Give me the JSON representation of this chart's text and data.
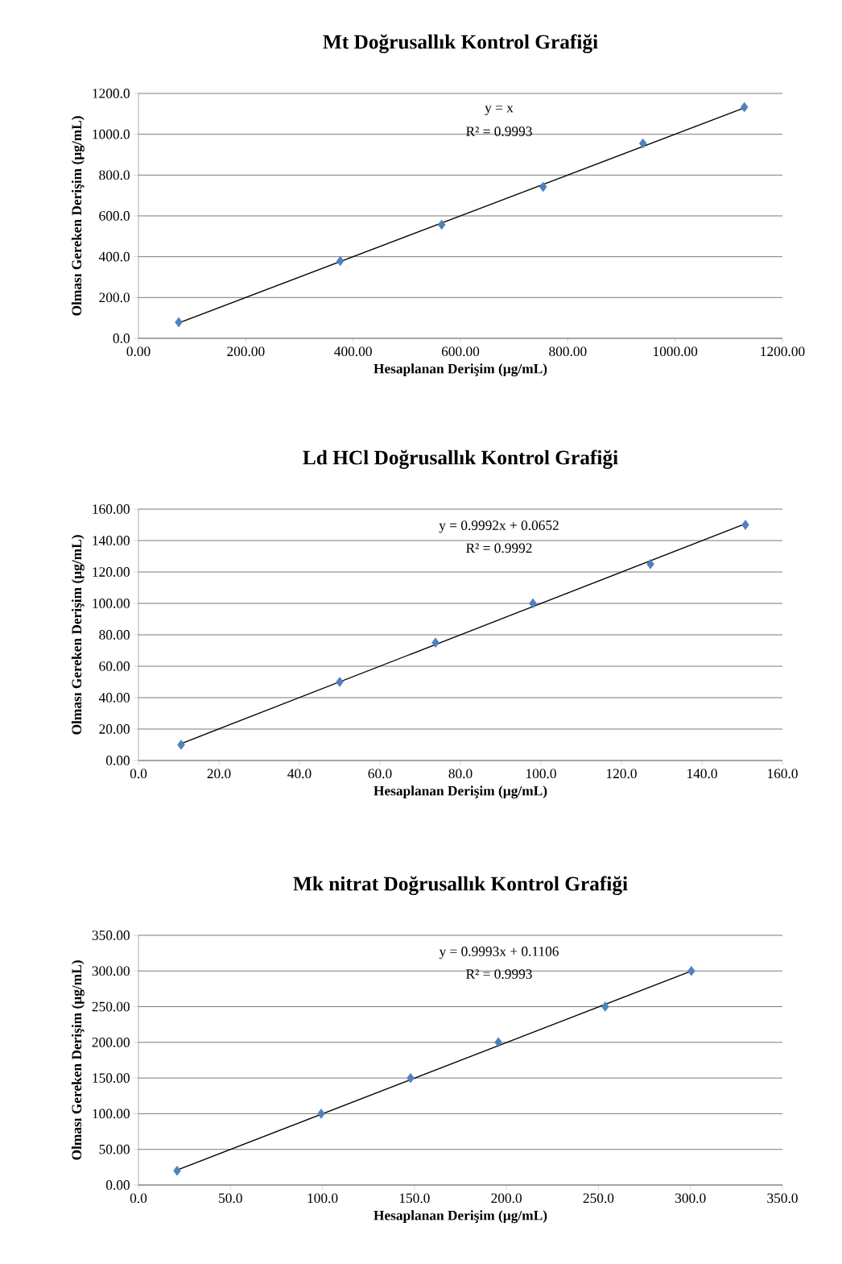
{
  "chart_data": [
    {
      "type": "scatter",
      "title": "Mt Doğrusallık Kontrol Grafiği",
      "xlabel": "Hesaplanan Derişim (µg/mL)",
      "ylabel": "Olması Gereken Derişim (µg/mL)",
      "grid": "y",
      "series": [
        {
          "color": "#4f81bd",
          "marker": "diamond",
          "x": [
            75,
            376,
            565,
            754,
            940,
            1129
          ],
          "values": [
            79,
            379,
            557,
            742,
            955,
            1133
          ]
        },
        {
          "type": "line",
          "marker": "none",
          "color": "#000000",
          "x": [
            75,
            1129
          ],
          "values": [
            75,
            1129
          ]
        }
      ],
      "xlim": [
        0,
        1200
      ],
      "ylim": [
        0,
        1200
      ],
      "xticks": [
        {
          "value": 0,
          "label": "0.00"
        },
        {
          "value": 200,
          "label": "200.00"
        },
        {
          "value": 400,
          "label": "400.00"
        },
        {
          "value": 600,
          "label": "600.00"
        },
        {
          "value": 800,
          "label": "800.00"
        },
        {
          "value": 1000,
          "label": "1000.00"
        },
        {
          "value": 1200,
          "label": "1200.00"
        }
      ],
      "yticks": [
        {
          "value": 0,
          "label": "0.0"
        },
        {
          "value": 200,
          "label": "200.0"
        },
        {
          "value": 400,
          "label": "400.0"
        },
        {
          "value": 600,
          "label": "600.0"
        },
        {
          "value": 800,
          "label": "800.0"
        },
        {
          "value": 1000,
          "label": "1000.0"
        },
        {
          "value": 1200,
          "label": "1200.0"
        }
      ],
      "annotations": [
        "y = x",
        "R² = 0.9993"
      ]
    },
    {
      "type": "scatter",
      "title": "Ld HCl Doğrusallık Kontrol Grafiği",
      "xlabel": "Hesaplanan Derişim (µg/mL)",
      "ylabel": "Olması Gereken Derişim (µg/mL)",
      "grid": "y",
      "series": [
        {
          "color": "#4f81bd",
          "marker": "diamond",
          "x": [
            10.6,
            50,
            73.8,
            98,
            127.2,
            150.8
          ],
          "values": [
            10,
            50,
            75,
            100,
            125,
            150
          ]
        },
        {
          "type": "line",
          "marker": "none",
          "color": "#000000",
          "x": [
            10.6,
            150.8
          ],
          "values": [
            10.7,
            150.7
          ]
        }
      ],
      "xlim": [
        0,
        160
      ],
      "ylim": [
        0,
        160
      ],
      "xticks": [
        {
          "value": 0,
          "label": "0.0"
        },
        {
          "value": 20,
          "label": "20.0"
        },
        {
          "value": 40,
          "label": "40.0"
        },
        {
          "value": 60,
          "label": "60.0"
        },
        {
          "value": 80,
          "label": "80.0"
        },
        {
          "value": 100,
          "label": "100.0"
        },
        {
          "value": 120,
          "label": "120.0"
        },
        {
          "value": 140,
          "label": "140.0"
        },
        {
          "value": 160,
          "label": "160.0"
        }
      ],
      "yticks": [
        {
          "value": 0,
          "label": "0.00"
        },
        {
          "value": 20,
          "label": "20.00"
        },
        {
          "value": 40,
          "label": "40.00"
        },
        {
          "value": 60,
          "label": "60.00"
        },
        {
          "value": 80,
          "label": "80.00"
        },
        {
          "value": 100,
          "label": "100.00"
        },
        {
          "value": 120,
          "label": "120.00"
        },
        {
          "value": 140,
          "label": "140.00"
        },
        {
          "value": 160,
          "label": "160.00"
        }
      ],
      "annotations": [
        "y = 0.9992x + 0.0652",
        "R² = 0.9992"
      ]
    },
    {
      "type": "scatter",
      "title": "Mk nitrat Doğrusallık Kontrol Grafiği",
      "xlabel": "Hesaplanan Derişim (µg/mL)",
      "ylabel": "Olması Gereken Derişim (µg/mL)",
      "grid": "y",
      "series": [
        {
          "color": "#4f81bd",
          "marker": "diamond",
          "x": [
            21,
            99.3,
            147.9,
            195.6,
            253.7,
            300.5
          ],
          "values": [
            20,
            100,
            150,
            200,
            250,
            300
          ]
        },
        {
          "type": "line",
          "marker": "none",
          "color": "#000000",
          "x": [
            21,
            300.5
          ],
          "values": [
            21,
            300
          ]
        }
      ],
      "xlim": [
        0,
        350
      ],
      "ylim": [
        0,
        350
      ],
      "xticks": [
        {
          "value": 0,
          "label": "0.0"
        },
        {
          "value": 50,
          "label": "50.0"
        },
        {
          "value": 100,
          "label": "100.0"
        },
        {
          "value": 150,
          "label": "150.0"
        },
        {
          "value": 200,
          "label": "200.0"
        },
        {
          "value": 250,
          "label": "250.0"
        },
        {
          "value": 300,
          "label": "300.0"
        },
        {
          "value": 350,
          "label": "350.0"
        }
      ],
      "yticks": [
        {
          "value": 0,
          "label": "0.00"
        },
        {
          "value": 50,
          "label": "50.00"
        },
        {
          "value": 100,
          "label": "100.00"
        },
        {
          "value": 150,
          "label": "150.00"
        },
        {
          "value": 200,
          "label": "200.00"
        },
        {
          "value": 250,
          "label": "250.00"
        },
        {
          "value": 300,
          "label": "300.00"
        },
        {
          "value": 350,
          "label": "350.00"
        }
      ],
      "annotations": [
        "y = 0.9993x + 0.1106",
        "R² = 0.9993"
      ]
    }
  ]
}
